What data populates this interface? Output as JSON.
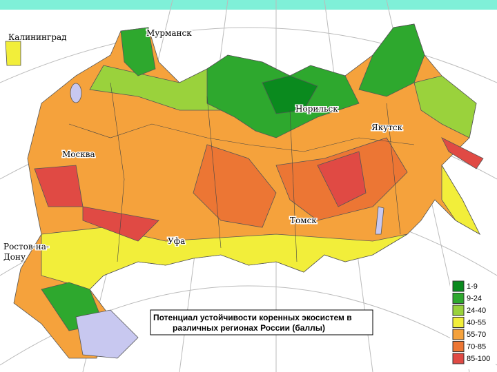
{
  "cities": [
    {
      "lines": [
        "Калининград"
      ]
    },
    {
      "lines": [
        "Мурманск"
      ]
    },
    {
      "lines": [
        "Норильск"
      ]
    },
    {
      "lines": [
        "Якутск"
      ]
    },
    {
      "lines": [
        "Москва"
      ]
    },
    {
      "lines": [
        "Ростов-на-",
        "Дону"
      ]
    },
    {
      "lines": [
        "Уфа"
      ]
    },
    {
      "lines": [
        "Томск"
      ]
    }
  ],
  "title": {
    "lines": [
      "Потенциал устойчивости коренных экосистем в",
      "различных регионах России (баллы)"
    ]
  },
  "legend": {
    "items": [
      {
        "label": "1-9",
        "color": "#0a8a1e"
      },
      {
        "label": "9-24",
        "color": "#2ea82e"
      },
      {
        "label": "24-40",
        "color": "#9ad23c"
      },
      {
        "label": "40-55",
        "color": "#f2ee3a"
      },
      {
        "label": "55-70",
        "color": "#f5a23c"
      },
      {
        "label": "70-85",
        "color": "#ec7634"
      },
      {
        "label": "85-100",
        "color": "#e04a44"
      }
    ]
  }
}
